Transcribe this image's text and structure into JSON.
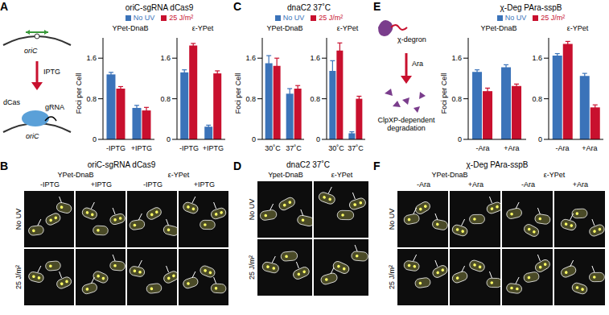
{
  "chart_data": [
    {
      "panel": "A",
      "title": "oriC-sgRNA dCas9",
      "y_label": "Foci per Cell",
      "subplots": [
        {
          "type": "bar",
          "title": "YPet-DnaB",
          "categories": [
            "-IPTG",
            "+IPTG"
          ],
          "ylim": [
            0,
            2
          ],
          "yticks": [
            0,
            0.8,
            1.6
          ],
          "series": [
            {
              "name": "No UV",
              "color": "#3b73b9",
              "values": [
                1.28,
                0.62
              ],
              "errors": [
                0.04,
                0.05
              ]
            },
            {
              "name": "25 J/m²",
              "color": "#c8102e",
              "values": [
                1.0,
                0.57
              ],
              "errors": [
                0.04,
                0.06
              ]
            }
          ]
        },
        {
          "type": "bar",
          "title": "ε-YPet",
          "categories": [
            "-IPTG",
            "+IPTG"
          ],
          "ylim": [
            0,
            2
          ],
          "yticks": [
            0,
            0.8,
            1.6
          ],
          "series": [
            {
              "name": "No UV",
              "color": "#3b73b9",
              "values": [
                1.32,
                0.25
              ],
              "errors": [
                0.05,
                0.03
              ]
            },
            {
              "name": "25 J/m²",
              "color": "#c8102e",
              "values": [
                1.85,
                1.3
              ],
              "errors": [
                0.04,
                0.05
              ]
            }
          ]
        }
      ]
    },
    {
      "panel": "C",
      "title": "dnaC2 37˚C",
      "y_label": "Foci per Cell",
      "subplots": [
        {
          "type": "bar",
          "title": "YPet-DnaB",
          "categories": [
            "30˚C",
            "37˚C"
          ],
          "ylim": [
            0,
            2
          ],
          "yticks": [
            0,
            0.8,
            1.6
          ],
          "series": [
            {
              "name": "No UV",
              "color": "#3b73b9",
              "values": [
                1.5,
                0.9
              ],
              "errors": [
                0.15,
                0.1
              ]
            },
            {
              "name": "25 J/m²",
              "color": "#c8102e",
              "values": [
                1.45,
                1.0
              ],
              "errors": [
                0.15,
                0.06
              ]
            }
          ]
        },
        {
          "type": "bar",
          "title": "ε-YPet",
          "categories": [
            "30˚C",
            "37˚C"
          ],
          "ylim": [
            0,
            2
          ],
          "yticks": [
            0,
            0.8,
            1.6
          ],
          "series": [
            {
              "name": "No UV",
              "color": "#3b73b9",
              "values": [
                1.35,
                0.12
              ],
              "errors": [
                0.2,
                0.03
              ]
            },
            {
              "name": "25 J/m²",
              "color": "#c8102e",
              "values": [
                1.75,
                0.8
              ],
              "errors": [
                0.15,
                0.05
              ]
            }
          ]
        }
      ]
    },
    {
      "panel": "E",
      "title": "χ-Deg PAra-sspB",
      "y_label": "Foci per Cell",
      "subplots": [
        {
          "type": "bar",
          "title": "YPet-DnaB",
          "categories": [
            "-Ara",
            "+Ara"
          ],
          "ylim": [
            0,
            2
          ],
          "yticks": [
            0,
            0.8,
            1.6
          ],
          "series": [
            {
              "name": "No UV",
              "color": "#3b73b9",
              "values": [
                1.33,
                1.42
              ],
              "errors": [
                0.04,
                0.05
              ]
            },
            {
              "name": "25 J/m²",
              "color": "#c8102e",
              "values": [
                0.95,
                1.05
              ],
              "errors": [
                0.06,
                0.04
              ]
            }
          ]
        },
        {
          "type": "bar",
          "title": "ε-YPet",
          "categories": [
            "-Ara",
            "+Ara"
          ],
          "ylim": [
            0,
            2
          ],
          "yticks": [
            0,
            0.8,
            1.6
          ],
          "series": [
            {
              "name": "No UV",
              "color": "#3b73b9",
              "values": [
                1.65,
                1.25
              ],
              "errors": [
                0.04,
                0.05
              ]
            },
            {
              "name": "25 J/m²",
              "color": "#c8102e",
              "values": [
                1.88,
                0.63
              ],
              "errors": [
                0.05,
                0.05
              ]
            }
          ]
        }
      ]
    }
  ],
  "image_panels": [
    {
      "panel": "B",
      "title": "oriC-sgRNA dCas9",
      "column_groups": [
        {
          "label": "YPet-DnaB",
          "columns": [
            "-IPTG",
            "+IPTG"
          ]
        },
        {
          "label": "ε-YPet",
          "columns": [
            "-IPTG",
            "+IPTG"
          ]
        }
      ],
      "rows": [
        "No UV",
        "25 J/m²"
      ]
    },
    {
      "panel": "D",
      "title": "dnaC2 37˚C",
      "column_groups": [
        {
          "label": "Ypet-DnaB",
          "columns": []
        },
        {
          "label": "ε-YPet",
          "columns": []
        }
      ],
      "rows": [
        "No UV",
        "25 J/m²"
      ]
    },
    {
      "panel": "F",
      "title": "χ-Deg PAra-sspB",
      "column_groups": [
        {
          "label": "YPet-DnaB",
          "columns": [
            "-Ara",
            "+Ara"
          ]
        },
        {
          "label": "ε-YPet",
          "columns": [
            "-Ara",
            "+Ara"
          ]
        }
      ],
      "rows": [
        "No UV",
        "25 J/m²"
      ]
    }
  ],
  "diagrams": {
    "A": {
      "locus": "oriC",
      "inducer": "IPTG",
      "protein": "dCas",
      "guide": "gRNA"
    },
    "E": {
      "degron": "χ-degron",
      "inducer": "Ara",
      "result": "ClpXP-dependent degradation"
    }
  }
}
